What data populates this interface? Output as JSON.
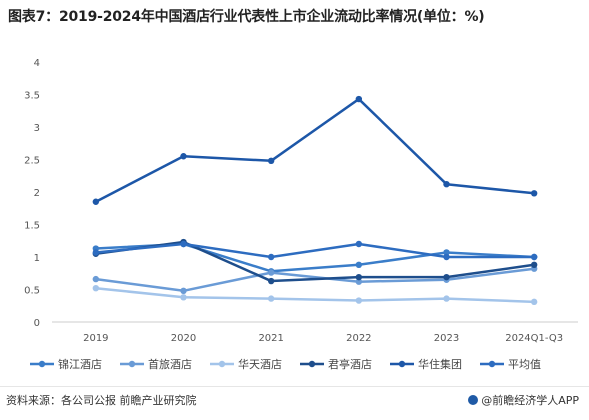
{
  "title": "图表7：2019-2024年中国酒店行业代表性上市企业流动比率情况(单位：%)",
  "source": "资料来源：各公司公报 前瞻产业研究院",
  "brand": "@前瞻经济学人APP",
  "chart_data": {
    "type": "line",
    "categories": [
      "2019",
      "2020",
      "2021",
      "2022",
      "2023",
      "2024Q1-Q3"
    ],
    "y_ticks": [
      "0",
      "0.5",
      "1",
      "1.5",
      "2",
      "2.5",
      "3",
      "3.5",
      "4"
    ],
    "ylim": [
      0,
      4
    ],
    "grid": false,
    "legend_position": "bottom",
    "series": [
      {
        "name": "锦江酒店",
        "color": "#3a7dc9",
        "values": [
          1.13,
          1.2,
          0.78,
          0.88,
          1.07,
          1.0
        ]
      },
      {
        "name": "首旅酒店",
        "color": "#6a9bd6",
        "values": [
          0.66,
          0.48,
          0.76,
          0.62,
          0.65,
          0.82
        ]
      },
      {
        "name": "华天酒店",
        "color": "#a3c4ea",
        "values": [
          0.52,
          0.38,
          0.36,
          0.33,
          0.36,
          0.31
        ]
      },
      {
        "name": "君亭酒店",
        "color": "#1e4e8c",
        "values": [
          1.05,
          1.23,
          0.63,
          0.69,
          0.69,
          0.88
        ]
      },
      {
        "name": "华住集团",
        "color": "#1d57a8",
        "values": [
          1.85,
          2.55,
          2.48,
          3.43,
          2.12,
          1.98
        ]
      },
      {
        "name": "平均值",
        "color": "#2d6cc0",
        "values": [
          1.07,
          1.2,
          1.0,
          1.2,
          1.0,
          1.0
        ]
      }
    ]
  }
}
